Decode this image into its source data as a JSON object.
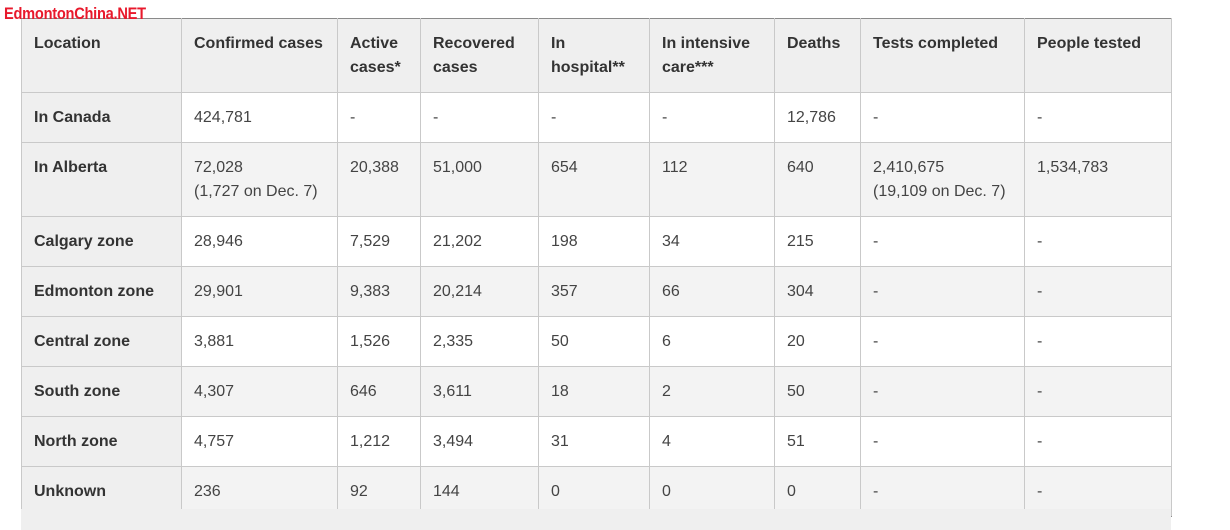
{
  "watermark": "EdmontonChina.NET",
  "table": {
    "headers": [
      "Location",
      "Confirmed cases",
      "Active cases*",
      "Recovered cases",
      "In hospital**",
      "In intensive care***",
      "Deaths",
      "Tests completed",
      "People tested"
    ],
    "rows": [
      {
        "location": "In Canada",
        "confirmed": "424,781",
        "confirmed_sub": "",
        "active": "-",
        "recovered": "-",
        "hospital": "-",
        "icu": "-",
        "deaths": "12,786",
        "tests": "-",
        "tests_sub": "",
        "people": "-"
      },
      {
        "location": "In Alberta",
        "confirmed": "72,028",
        "confirmed_sub": "(1,727 on Dec. 7)",
        "active": "20,388",
        "recovered": "51,000",
        "hospital": "654",
        "icu": "112",
        "deaths": "640",
        "tests": "2,410,675",
        "tests_sub": "(19,109 on Dec. 7)",
        "people": "1,534,783"
      },
      {
        "location": "Calgary zone",
        "confirmed": "28,946",
        "confirmed_sub": "",
        "active": "7,529",
        "recovered": "21,202",
        "hospital": "198",
        "icu": "34",
        "deaths": "215",
        "tests": "-",
        "tests_sub": "",
        "people": "-"
      },
      {
        "location": "Edmonton zone",
        "confirmed": "29,901",
        "confirmed_sub": "",
        "active": "9,383",
        "recovered": "20,214",
        "hospital": "357",
        "icu": "66",
        "deaths": "304",
        "tests": "-",
        "tests_sub": "",
        "people": "-"
      },
      {
        "location": "Central zone",
        "confirmed": "3,881",
        "confirmed_sub": "",
        "active": "1,526",
        "recovered": "2,335",
        "hospital": "50",
        "icu": "6",
        "deaths": "20",
        "tests": "-",
        "tests_sub": "",
        "people": "-"
      },
      {
        "location": "South zone",
        "confirmed": "4,307",
        "confirmed_sub": "",
        "active": "646",
        "recovered": "3,611",
        "hospital": "18",
        "icu": "2",
        "deaths": "50",
        "tests": "-",
        "tests_sub": "",
        "people": "-"
      },
      {
        "location": "North zone",
        "confirmed": "4,757",
        "confirmed_sub": "",
        "active": "1,212",
        "recovered": "3,494",
        "hospital": "31",
        "icu": "4",
        "deaths": "51",
        "tests": "-",
        "tests_sub": "",
        "people": "-"
      },
      {
        "location": "Unknown",
        "confirmed": "236",
        "confirmed_sub": "",
        "active": "92",
        "recovered": "144",
        "hospital": "0",
        "icu": "0",
        "deaths": "0",
        "tests": "-",
        "tests_sub": "",
        "people": "-"
      }
    ]
  }
}
